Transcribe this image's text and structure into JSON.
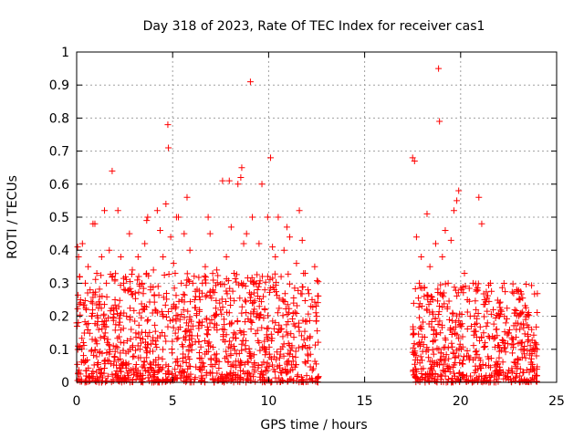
{
  "chart_data": {
    "type": "scatter",
    "title": "Day 318 of 2023, Rate Of TEC Index for receiver cas1",
    "xlabel": "GPS time / hours",
    "ylabel": "ROTI / TECUs",
    "xlim": [
      0,
      25
    ],
    "ylim": [
      0,
      1
    ],
    "xticks": [
      0,
      5,
      10,
      15,
      20,
      25
    ],
    "xtick_labels": [
      "0",
      "5",
      "10",
      "15",
      "20",
      "25"
    ],
    "yticks": [
      0,
      0.1,
      0.2,
      0.3,
      0.4,
      0.5,
      0.6,
      0.7,
      0.8,
      0.9,
      1
    ],
    "ytick_labels": [
      "0",
      "0.1",
      "0.2",
      "0.3",
      "0.4",
      "0.5",
      "0.6",
      "0.7",
      "0.8",
      "0.9",
      "1"
    ],
    "grid": true,
    "marker": "plus",
    "color": "#ff0000",
    "series": [
      {
        "points": [
          [
            0.0,
            0.18
          ],
          [
            0.05,
            0.41
          ],
          [
            0.1,
            0.38
          ],
          [
            0.15,
            0.32
          ],
          [
            0.2,
            0.25
          ],
          [
            0.3,
            0.42
          ],
          [
            0.35,
            0.12
          ],
          [
            0.45,
            0.3
          ],
          [
            0.5,
            0.22
          ],
          [
            0.6,
            0.35
          ],
          [
            0.7,
            0.28
          ],
          [
            0.8,
            0.2
          ],
          [
            0.85,
            0.48
          ],
          [
            0.95,
            0.48
          ],
          [
            1.05,
            0.33
          ],
          [
            1.15,
            0.16
          ],
          [
            1.3,
            0.38
          ],
          [
            1.45,
            0.52
          ],
          [
            1.55,
            0.3
          ],
          [
            1.7,
            0.4
          ],
          [
            1.85,
            0.64
          ],
          [
            2.0,
            0.25
          ],
          [
            2.15,
            0.52
          ],
          [
            2.3,
            0.38
          ],
          [
            2.45,
            0.3
          ],
          [
            2.6,
            0.2
          ],
          [
            2.75,
            0.45
          ],
          [
            2.9,
            0.34
          ],
          [
            3.05,
            0.27
          ],
          [
            3.2,
            0.38
          ],
          [
            3.4,
            0.3
          ],
          [
            3.55,
            0.42
          ],
          [
            3.65,
            0.49
          ],
          [
            3.7,
            0.5
          ],
          [
            3.85,
            0.28
          ],
          [
            4.0,
            0.34
          ],
          [
            4.2,
            0.52
          ],
          [
            4.35,
            0.46
          ],
          [
            4.5,
            0.38
          ],
          [
            4.65,
            0.54
          ],
          [
            4.75,
            0.78
          ],
          [
            4.78,
            0.71
          ],
          [
            4.9,
            0.44
          ],
          [
            5.05,
            0.36
          ],
          [
            5.2,
            0.5
          ],
          [
            5.3,
            0.5
          ],
          [
            5.45,
            0.3
          ],
          [
            5.6,
            0.45
          ],
          [
            5.75,
            0.56
          ],
          [
            5.9,
            0.4
          ],
          [
            6.05,
            0.3
          ],
          [
            6.2,
            0.26
          ],
          [
            6.4,
            0.22
          ],
          [
            6.55,
            0.3
          ],
          [
            6.7,
            0.35
          ],
          [
            6.85,
            0.5
          ],
          [
            6.95,
            0.45
          ],
          [
            7.1,
            0.28
          ],
          [
            7.3,
            0.34
          ],
          [
            7.45,
            0.24
          ],
          [
            7.6,
            0.61
          ],
          [
            7.8,
            0.38
          ],
          [
            7.95,
            0.61
          ],
          [
            8.05,
            0.47
          ],
          [
            8.2,
            0.33
          ],
          [
            8.4,
            0.6
          ],
          [
            8.55,
            0.62
          ],
          [
            8.6,
            0.65
          ],
          [
            8.7,
            0.42
          ],
          [
            8.85,
            0.45
          ],
          [
            9.05,
            0.91
          ],
          [
            9.15,
            0.5
          ],
          [
            9.35,
            0.3
          ],
          [
            9.5,
            0.42
          ],
          [
            9.65,
            0.6
          ],
          [
            9.8,
            0.28
          ],
          [
            9.95,
            0.5
          ],
          [
            10.1,
            0.68
          ],
          [
            10.2,
            0.41
          ],
          [
            10.35,
            0.38
          ],
          [
            10.5,
            0.5
          ],
          [
            10.65,
            0.32
          ],
          [
            10.8,
            0.4
          ],
          [
            10.95,
            0.47
          ],
          [
            11.1,
            0.44
          ],
          [
            11.3,
            0.24
          ],
          [
            11.45,
            0.36
          ],
          [
            11.6,
            0.52
          ],
          [
            11.75,
            0.43
          ],
          [
            11.9,
            0.33
          ],
          [
            12.05,
            0.28
          ],
          [
            12.2,
            0.23
          ],
          [
            12.4,
            0.35
          ],
          [
            12.5,
            0.2
          ],
          [
            17.5,
            0.68
          ],
          [
            17.6,
            0.67
          ],
          [
            17.7,
            0.44
          ],
          [
            17.85,
            0.3
          ],
          [
            17.95,
            0.38
          ],
          [
            18.1,
            0.26
          ],
          [
            18.25,
            0.51
          ],
          [
            18.4,
            0.35
          ],
          [
            18.55,
            0.25
          ],
          [
            18.7,
            0.42
          ],
          [
            18.85,
            0.95
          ],
          [
            18.9,
            0.79
          ],
          [
            19.05,
            0.38
          ],
          [
            19.2,
            0.46
          ],
          [
            19.35,
            0.3
          ],
          [
            19.5,
            0.43
          ],
          [
            19.65,
            0.52
          ],
          [
            19.8,
            0.55
          ],
          [
            19.9,
            0.58
          ],
          [
            20.05,
            0.28
          ],
          [
            20.2,
            0.33
          ],
          [
            20.35,
            0.25
          ],
          [
            20.5,
            0.2
          ],
          [
            20.65,
            0.3
          ],
          [
            20.8,
            0.22
          ],
          [
            20.95,
            0.56
          ],
          [
            21.1,
            0.48
          ],
          [
            21.25,
            0.25
          ],
          [
            21.4,
            0.18
          ],
          [
            21.55,
            0.3
          ],
          [
            21.7,
            0.22
          ],
          [
            21.85,
            0.16
          ],
          [
            22.0,
            0.2
          ],
          [
            22.2,
            0.12
          ],
          [
            22.35,
            0.18
          ],
          [
            22.5,
            0.15
          ],
          [
            22.7,
            0.13
          ],
          [
            22.9,
            0.16
          ],
          [
            23.1,
            0.12
          ],
          [
            23.3,
            0.1
          ],
          [
            23.5,
            0.14
          ],
          [
            23.7,
            0.16
          ],
          [
            23.85,
            0.12
          ],
          [
            23.95,
            0.08
          ]
        ],
        "dense_segments": [
          {
            "x_start": 0.0,
            "x_end": 12.6,
            "y_low": 0.0,
            "y_high": 0.33
          },
          {
            "x_start": 17.5,
            "x_end": 24.0,
            "y_low": 0.0,
            "y_high": 0.3
          }
        ]
      }
    ]
  }
}
